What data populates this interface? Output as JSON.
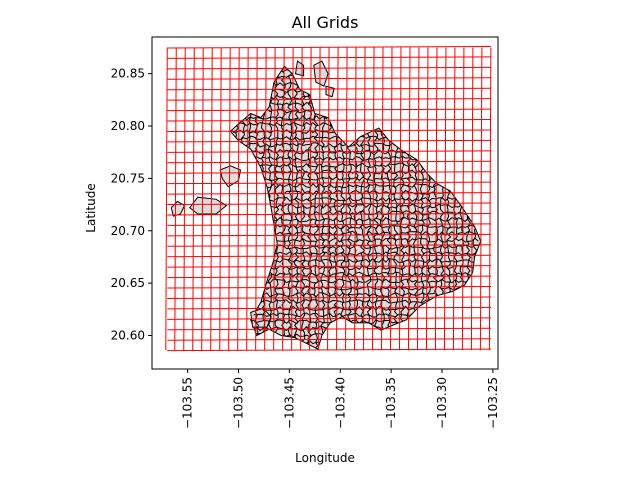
{
  "chart_data": {
    "type": "map",
    "title": "All Grids",
    "xlabel": "Longitude",
    "ylabel": "Latitude",
    "xlim": [
      -103.585,
      -103.245
    ],
    "ylim": [
      20.568,
      20.885
    ],
    "xticks": [
      -103.55,
      -103.5,
      -103.45,
      -103.4,
      -103.35,
      -103.3,
      -103.25
    ],
    "xtick_labels": [
      "−103.55",
      "−103.50",
      "−103.45",
      "−103.40",
      "−103.35",
      "−103.30",
      "−103.25"
    ],
    "yticks": [
      20.6,
      20.65,
      20.7,
      20.75,
      20.8,
      20.85
    ],
    "ytick_labels": [
      "20.60",
      "20.65",
      "20.70",
      "20.75",
      "20.80",
      "20.85"
    ],
    "grid_lines": {
      "color": "#ff0000",
      "x_start": -103.57,
      "x_end": -103.252,
      "x_count": 36,
      "y_start": 20.586,
      "y_end": 20.875,
      "y_count": 29
    },
    "city_outline": [
      [
        -103.482,
        20.6
      ],
      [
        -103.47,
        20.606
      ],
      [
        -103.458,
        20.6
      ],
      [
        -103.445,
        20.598
      ],
      [
        -103.432,
        20.592
      ],
      [
        -103.422,
        20.587
      ],
      [
        -103.418,
        20.6
      ],
      [
        -103.41,
        20.612
      ],
      [
        -103.398,
        20.618
      ],
      [
        -103.388,
        20.612
      ],
      [
        -103.372,
        20.612
      ],
      [
        -103.36,
        20.605
      ],
      [
        -103.348,
        20.61
      ],
      [
        -103.335,
        20.615
      ],
      [
        -103.322,
        20.628
      ],
      [
        -103.305,
        20.638
      ],
      [
        -103.29,
        20.642
      ],
      [
        -103.278,
        20.648
      ],
      [
        -103.27,
        20.66
      ],
      [
        -103.268,
        20.675
      ],
      [
        -103.262,
        20.69
      ],
      [
        -103.268,
        20.704
      ],
      [
        -103.28,
        20.722
      ],
      [
        -103.292,
        20.738
      ],
      [
        -103.305,
        20.745
      ],
      [
        -103.315,
        20.755
      ],
      [
        -103.325,
        20.768
      ],
      [
        -103.34,
        20.777
      ],
      [
        -103.353,
        20.787
      ],
      [
        -103.362,
        20.798
      ],
      [
        -103.38,
        20.79
      ],
      [
        -103.392,
        20.78
      ],
      [
        -103.405,
        20.793
      ],
      [
        -103.412,
        20.808
      ],
      [
        -103.425,
        20.812
      ],
      [
        -103.43,
        20.83
      ],
      [
        -103.44,
        20.835
      ],
      [
        -103.447,
        20.85
      ],
      [
        -103.455,
        20.857
      ],
      [
        -103.465,
        20.842
      ],
      [
        -103.47,
        20.818
      ],
      [
        -103.478,
        20.808
      ],
      [
        -103.488,
        20.812
      ],
      [
        -103.5,
        20.802
      ],
      [
        -103.508,
        20.795
      ],
      [
        -103.5,
        20.786
      ],
      [
        -103.488,
        20.778
      ],
      [
        -103.478,
        20.76
      ],
      [
        -103.472,
        20.742
      ],
      [
        -103.468,
        20.722
      ],
      [
        -103.465,
        20.705
      ],
      [
        -103.462,
        20.688
      ],
      [
        -103.466,
        20.67
      ],
      [
        -103.472,
        20.652
      ],
      [
        -103.478,
        20.632
      ],
      [
        -103.488,
        20.615
      ]
    ],
    "outlying_patches": [
      [
        [
          -103.566,
          20.722
        ],
        [
          -103.56,
          20.728
        ],
        [
          -103.553,
          20.724
        ],
        [
          -103.557,
          20.716
        ],
        [
          -103.564,
          20.714
        ]
      ],
      [
        [
          -103.548,
          20.722
        ],
        [
          -103.54,
          20.732
        ],
        [
          -103.522,
          20.73
        ],
        [
          -103.512,
          20.724
        ],
        [
          -103.522,
          20.716
        ],
        [
          -103.54,
          20.716
        ]
      ],
      [
        [
          -103.518,
          20.758
        ],
        [
          -103.508,
          20.762
        ],
        [
          -103.498,
          20.758
        ],
        [
          -103.5,
          20.748
        ],
        [
          -103.51,
          20.742
        ],
        [
          -103.516,
          20.75
        ]
      ],
      [
        [
          -103.442,
          20.862
        ],
        [
          -103.436,
          20.858
        ],
        [
          -103.436,
          20.848
        ],
        [
          -103.444,
          20.85
        ]
      ],
      [
        [
          -103.426,
          20.858
        ],
        [
          -103.418,
          20.862
        ],
        [
          -103.412,
          20.85
        ],
        [
          -103.416,
          20.838
        ],
        [
          -103.424,
          20.842
        ]
      ],
      [
        [
          -103.414,
          20.838
        ],
        [
          -103.406,
          20.836
        ],
        [
          -103.408,
          20.828
        ],
        [
          -103.414,
          20.83
        ]
      ],
      [
        [
          -103.488,
          20.622
        ],
        [
          -103.476,
          20.626
        ],
        [
          -103.468,
          20.618
        ],
        [
          -103.472,
          20.608
        ],
        [
          -103.486,
          20.608
        ]
      ]
    ]
  }
}
